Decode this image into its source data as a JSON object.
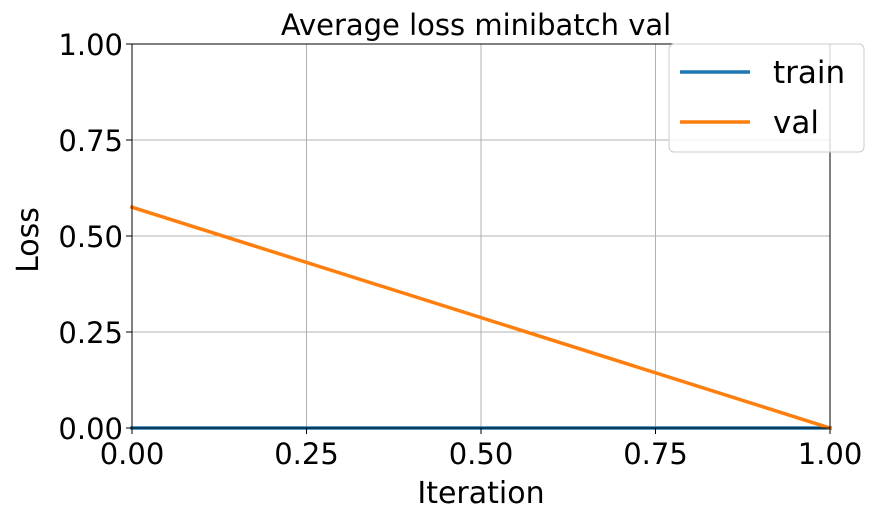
{
  "chart_data": {
    "type": "line",
    "title": "Average loss minibatch val",
    "xlabel": "Iteration",
    "ylabel": "Loss",
    "xlim": [
      0,
      1
    ],
    "ylim": [
      0,
      1
    ],
    "xticks": [
      "0.00",
      "0.25",
      "0.50",
      "0.75",
      "1.00"
    ],
    "yticks": [
      "0.00",
      "0.25",
      "0.50",
      "0.75",
      "1.00"
    ],
    "grid": true,
    "legend_position": "top-right",
    "series": [
      {
        "name": "train",
        "color": "#1f77b4",
        "x": [
          0,
          1
        ],
        "y": [
          0.0,
          0.0
        ]
      },
      {
        "name": "val",
        "color": "#ff7f0e",
        "x": [
          0,
          1
        ],
        "y": [
          0.575,
          0.0
        ]
      }
    ]
  }
}
